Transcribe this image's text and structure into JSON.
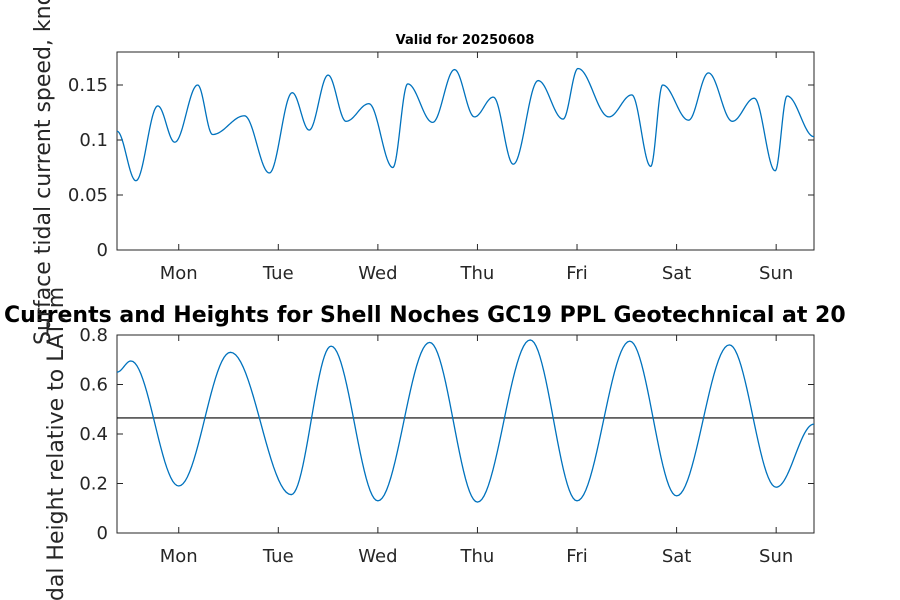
{
  "chart_data": [
    {
      "type": "line",
      "title": "Valid for 20250608",
      "ylabel": "Surface tidal current speed, knots",
      "xlabel": "",
      "days": [
        "Mon",
        "Tue",
        "Wed",
        "Thu",
        "Fri",
        "Sat",
        "Sun"
      ],
      "xlim": [
        0,
        7
      ],
      "ylim": [
        0,
        0.18
      ],
      "yticks": [
        0,
        0.05,
        0.1,
        0.15
      ],
      "ytick_labels": [
        "0",
        "0.05",
        "0.1",
        "0.15"
      ],
      "grid": false,
      "series": [
        {
          "color": "#0072bd",
          "x": [
            0.0,
            0.19,
            0.41,
            0.58,
            0.81,
            0.96,
            1.28,
            1.53,
            1.76,
            1.93,
            2.12,
            2.3,
            2.53,
            2.77,
            2.92,
            3.17,
            3.39,
            3.59,
            3.78,
            3.98,
            4.23,
            4.48,
            4.63,
            4.94,
            5.17,
            5.36,
            5.48,
            5.74,
            5.94,
            6.18,
            6.4,
            6.61,
            6.73,
            7.0
          ],
          "y": [
            0.108,
            0.063,
            0.131,
            0.098,
            0.15,
            0.105,
            0.122,
            0.07,
            0.143,
            0.109,
            0.159,
            0.117,
            0.133,
            0.075,
            0.151,
            0.116,
            0.164,
            0.121,
            0.139,
            0.078,
            0.154,
            0.119,
            0.165,
            0.121,
            0.141,
            0.076,
            0.15,
            0.118,
            0.161,
            0.117,
            0.138,
            0.072,
            0.14,
            0.103
          ]
        }
      ]
    },
    {
      "type": "line",
      "title": "Currents and Heights for Shell Noches   GC19 PPL  Geotechnical at 20",
      "ylabel": "Tidal Height relative to LAT, m",
      "xlabel": "",
      "days": [
        "Mon",
        "Tue",
        "Wed",
        "Thu",
        "Fri",
        "Sat",
        "Sun"
      ],
      "xlim": [
        0,
        7
      ],
      "ylim": [
        0,
        0.8
      ],
      "yticks": [
        0,
        0.2,
        0.4,
        0.6,
        0.8
      ],
      "ytick_labels": [
        "0",
        "0.2",
        "0.4",
        "0.6",
        "0.8"
      ],
      "grid": false,
      "reference_line": 0.465,
      "series": [
        {
          "color": "#0072bd",
          "x": [
            0.0,
            0.14,
            0.62,
            1.14,
            1.75,
            2.15,
            2.62,
            3.14,
            3.62,
            4.15,
            4.62,
            5.15,
            5.62,
            6.15,
            6.62,
            7.0
          ],
          "y": [
            0.65,
            0.695,
            0.19,
            0.73,
            0.155,
            0.755,
            0.13,
            0.77,
            0.125,
            0.78,
            0.13,
            0.775,
            0.15,
            0.76,
            0.185,
            0.44
          ]
        }
      ]
    }
  ]
}
